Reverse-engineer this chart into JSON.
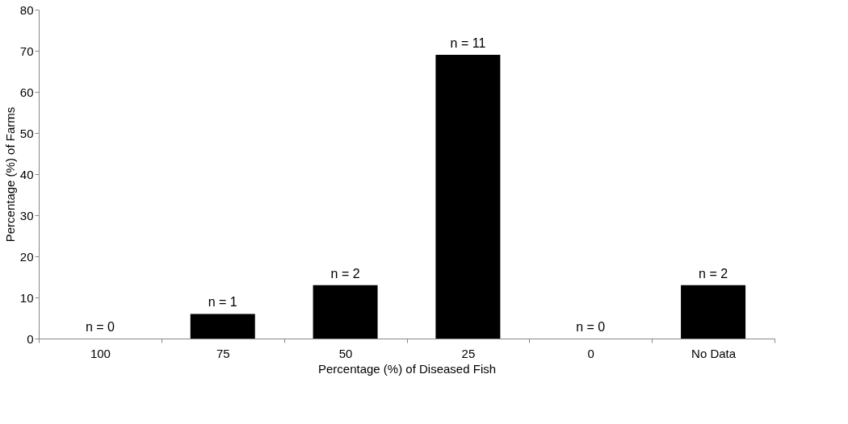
{
  "chart_data": {
    "type": "bar",
    "xlabel": "Percentage (%) of Diseased Fish",
    "ylabel": "Percentage (%) of Farms",
    "categories": [
      "100",
      "75",
      "50",
      "25",
      "0",
      "No Data"
    ],
    "values": [
      0,
      6,
      13,
      69,
      0,
      13
    ],
    "annotations": [
      {
        "text": "n = 0",
        "x": "100",
        "y": 0
      },
      {
        "text": "n = 1",
        "x": "75",
        "y": 6
      },
      {
        "text": "n = 2",
        "x": "50",
        "y": 13
      },
      {
        "text": "n = 11",
        "x": "25",
        "y": 69
      },
      {
        "text": "n = 0",
        "x": "0",
        "y": 0
      },
      {
        "text": "n = 2",
        "x": "No Data",
        "y": 13
      }
    ],
    "color": "#000000",
    "ylim": [
      0,
      80
    ],
    "yticks": [
      0,
      10,
      20,
      30,
      40,
      50,
      60,
      70,
      80
    ],
    "grid": false
  }
}
